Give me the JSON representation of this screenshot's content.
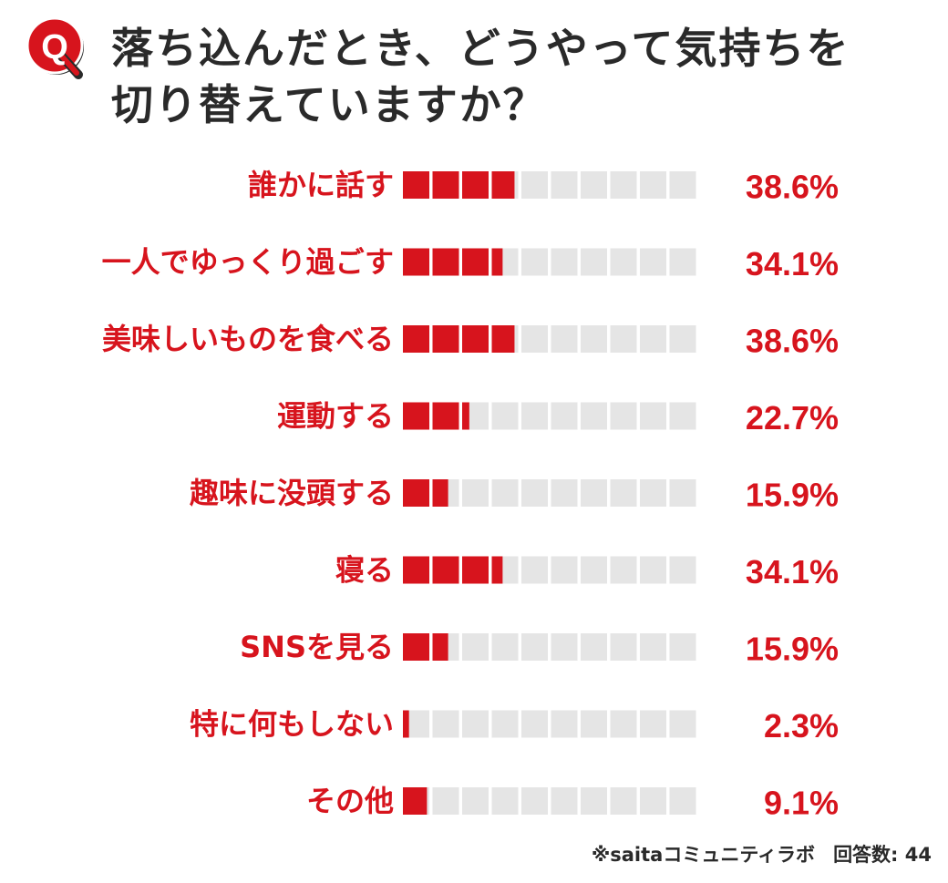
{
  "badge_letter": "Q",
  "title_lines": [
    "落ち込んだとき、どうやって気持ちを",
    "切り替えていますか？"
  ],
  "colors": {
    "accent": "#d7141d",
    "track": "#e5e5e5",
    "text": "#2a2a2a"
  },
  "chart_data": {
    "type": "bar",
    "orientation": "horizontal",
    "title": "落ち込んだとき、どうやって気持ちを切り替えていますか？",
    "categories": [
      "誰かに話す",
      "一人でゆっくり過ごす",
      "美味しいものを食べる",
      "運動する",
      "趣味に没頭する",
      "寝る",
      "SNSを見る",
      "特に何もしない",
      "その他"
    ],
    "values": [
      38.6,
      34.1,
      38.6,
      22.7,
      15.9,
      34.1,
      15.9,
      2.3,
      9.1
    ],
    "value_labels": [
      "38.6%",
      "34.1%",
      "38.6%",
      "22.7%",
      "15.9%",
      "34.1%",
      "15.9%",
      "2.3%",
      "9.1%"
    ],
    "segments": 10,
    "segment_value": 10,
    "xlim": [
      0,
      100
    ]
  },
  "footnote": {
    "source": "※saitaコミュニティラボ",
    "respondents": "回答数: 44"
  }
}
